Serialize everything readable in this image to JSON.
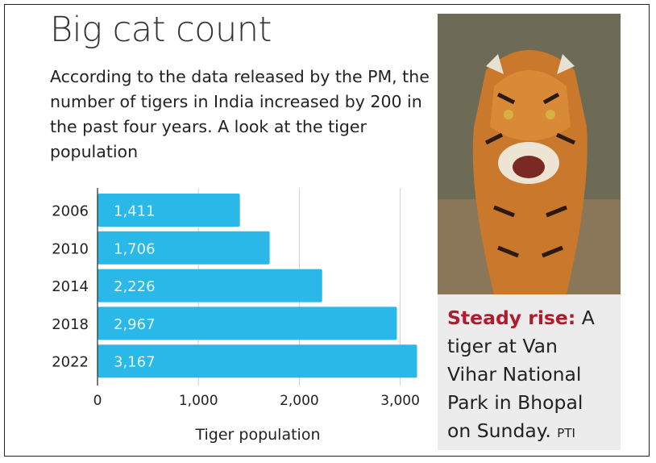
{
  "title": "Big cat count",
  "subtitle": "According to the data released by the PM, the number of tigers in India increased by 200 in the past four years. A look at the tiger population",
  "chart_data": {
    "type": "bar",
    "orientation": "horizontal",
    "categories": [
      "2006",
      "2010",
      "2014",
      "2018",
      "2022"
    ],
    "values": [
      1411,
      1706,
      2226,
      2967,
      3167
    ],
    "value_labels": [
      "1,411",
      "1,706",
      "2,226",
      "2,967",
      "3,167"
    ],
    "xlabel": "Tiger population",
    "ylabel": "",
    "xlim": [
      0,
      3200
    ],
    "xticks": [
      0,
      1000,
      2000,
      3000
    ],
    "xtick_labels": [
      "0",
      "1,000",
      "2,000",
      "3,000"
    ],
    "grid": "vertical",
    "bar_color": "#29b8e8"
  },
  "photo": {
    "subject": "tiger"
  },
  "caption": {
    "lead": "Steady rise:",
    "text": " A tiger at Van Vihar National Park in Bhopal on Sunday.",
    "credit": "PTI",
    "lead_color": "#b01c2e"
  }
}
